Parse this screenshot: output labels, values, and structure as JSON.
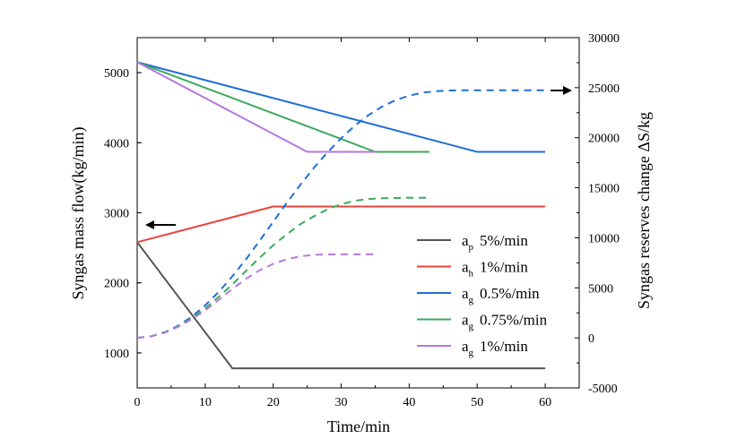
{
  "chart_data": {
    "type": "line",
    "xlabel": "Time/min",
    "ylabel_left": "Syngas mass flow(kg/min)",
    "ylabel_right": "Syngas reserves change ΔS/kg",
    "xlim": [
      0,
      65
    ],
    "ylim_left": [
      500,
      5500
    ],
    "ylim_right": [
      -5000,
      30000
    ],
    "x_ticks": [
      0,
      10,
      20,
      30,
      40,
      50,
      60
    ],
    "x_tick_labels": [
      "0",
      "10",
      "20",
      "30",
      "40",
      "50",
      "60"
    ],
    "y_left_ticks": [
      1000,
      2000,
      3000,
      4000,
      5000
    ],
    "y_left_tick_labels": [
      "1000",
      "2000",
      "3000",
      "4000",
      "5000"
    ],
    "y_right_ticks": [
      -5000,
      0,
      5000,
      10000,
      15000,
      20000,
      25000,
      30000
    ],
    "y_right_tick_labels": [
      "-5000",
      "0",
      "5000",
      "10000",
      "15000",
      "20000",
      "25000",
      "30000"
    ],
    "grid": false,
    "legend_position": "lower-right",
    "series": [
      {
        "name": "a",
        "subscript": "p",
        "rate": "5%/min",
        "color": "#555555",
        "axis": "left",
        "style": "solid",
        "x": [
          0,
          14,
          60
        ],
        "y": [
          2580,
          780,
          780
        ]
      },
      {
        "name": "a",
        "subscript": "h",
        "rate": "1%/min",
        "color": "#e8453c",
        "axis": "left",
        "style": "solid",
        "x": [
          0,
          20,
          60
        ],
        "y": [
          2580,
          3090,
          3090
        ]
      },
      {
        "name": "a",
        "subscript": "g",
        "rate": "0.5%/min",
        "color": "#1f6fd6",
        "axis": "left",
        "style": "solid",
        "x": [
          0,
          50,
          60
        ],
        "y": [
          5150,
          3870,
          3870
        ]
      },
      {
        "name": "a",
        "subscript": "g",
        "rate": "0.75%/min",
        "color": "#3aaa5c",
        "axis": "left",
        "style": "solid",
        "x": [
          0,
          35,
          43
        ],
        "y": [
          5150,
          3870,
          3870
        ]
      },
      {
        "name": "a",
        "subscript": "g",
        "rate": "1%/min",
        "color": "#b478e0",
        "axis": "left",
        "style": "solid",
        "x": [
          0,
          25,
          35
        ],
        "y": [
          5150,
          3870,
          3870
        ]
      },
      {
        "name": "",
        "color": "#1f6fd6",
        "axis": "right",
        "style": "dashed",
        "x": [
          0,
          2,
          4,
          6,
          8,
          10,
          12,
          14,
          16,
          18,
          20,
          22,
          24,
          26,
          28,
          30,
          32,
          34,
          36,
          38,
          40,
          42,
          44,
          46,
          48,
          50,
          55,
          60
        ],
        "y": [
          0,
          150,
          550,
          1200,
          2100,
          3250,
          4600,
          6150,
          7850,
          9700,
          11600,
          13500,
          15300,
          17000,
          18550,
          19950,
          21200,
          22250,
          23100,
          23750,
          24200,
          24500,
          24650,
          24720,
          24750,
          24750,
          24750,
          24750
        ]
      },
      {
        "name": "",
        "color": "#3aaa5c",
        "axis": "right",
        "style": "dashed",
        "x": [
          0,
          2,
          4,
          6,
          8,
          10,
          12,
          14,
          16,
          18,
          20,
          22,
          24,
          26,
          28,
          30,
          32,
          34,
          36,
          38,
          40,
          43
        ],
        "y": [
          0,
          150,
          550,
          1150,
          1950,
          2950,
          4100,
          5350,
          6700,
          8000,
          9250,
          10350,
          11350,
          12150,
          12850,
          13350,
          13700,
          13880,
          13950,
          13980,
          14000,
          14000
        ]
      },
      {
        "name": "",
        "color": "#b478e0",
        "axis": "right",
        "style": "dashed",
        "x": [
          0,
          2,
          4,
          6,
          8,
          10,
          12,
          14,
          16,
          18,
          20,
          22,
          24,
          26,
          28,
          30,
          35
        ],
        "y": [
          0,
          150,
          500,
          1100,
          1850,
          2750,
          3800,
          4900,
          5900,
          6750,
          7400,
          7850,
          8150,
          8300,
          8340,
          8350,
          8350
        ]
      }
    ],
    "arrows": [
      {
        "direction": "left",
        "axis": "left"
      },
      {
        "direction": "right",
        "axis": "right"
      }
    ]
  }
}
